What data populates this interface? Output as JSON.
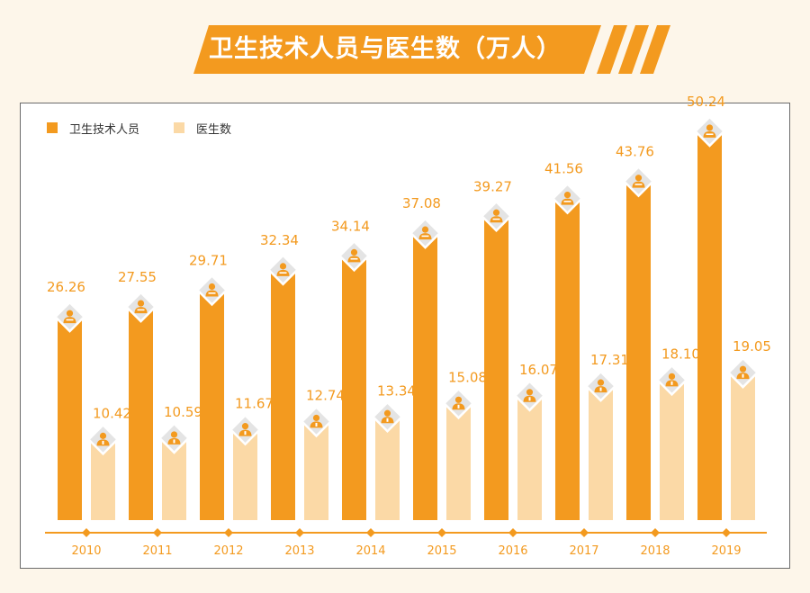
{
  "title": "卫生技术人员与医生数（万人）",
  "colors": {
    "primary": "#f39a1f",
    "secondary": "#fbd9a6",
    "label": "#f39a1f",
    "axis": "#f39a1f",
    "icon_diamond": "#e4e4e4"
  },
  "chart_data": {
    "type": "bar",
    "title": "卫生技术人员与医生数（万人）",
    "categories": [
      "2010",
      "2011",
      "2012",
      "2013",
      "2014",
      "2015",
      "2016",
      "2017",
      "2018",
      "2019"
    ],
    "series": [
      {
        "name": "卫生技术人员",
        "values": [
          26.26,
          27.55,
          29.71,
          32.34,
          34.14,
          37.08,
          39.27,
          41.56,
          43.76,
          50.24
        ]
      },
      {
        "name": "医生数",
        "values": [
          10.42,
          10.59,
          11.67,
          12.74,
          13.34,
          15.08,
          16.07,
          17.31,
          18.1,
          19.05
        ]
      }
    ],
    "legend_position": "top-left",
    "grid": false,
    "icons": [
      "person-icon",
      "doctor-icon"
    ]
  }
}
